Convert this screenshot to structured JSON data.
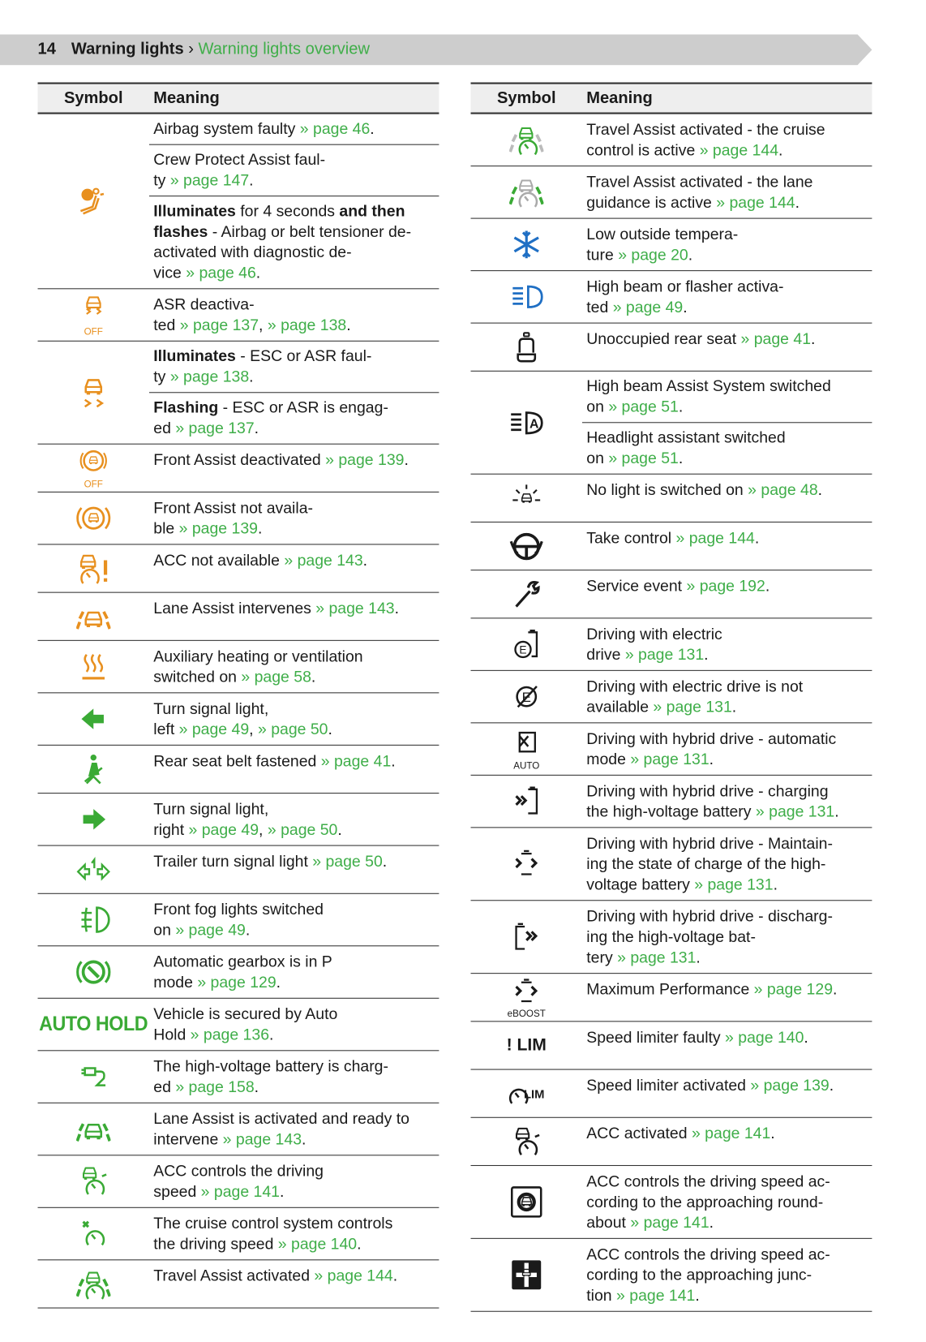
{
  "header": {
    "page_number": "14",
    "section": "Warning lights",
    "separator": "›",
    "subsection": "Warning lights overview"
  },
  "colors": {
    "orange": "#e8901f",
    "green": "#3aaa35",
    "blue": "#1f6fc4",
    "black": "#1a1a1a",
    "link": "#3fae49",
    "band": "#cdcdcd"
  },
  "left": {
    "col_symbol": "Symbol",
    "col_meaning": "Meaning",
    "rows": [
      {
        "icon": "airbag-icon",
        "color": "orange",
        "cells": [
          [
            [
              "Airbag system faulty ",
              ""
            ],
            [
              "» page 46",
              "l"
            ],
            [
              ".",
              ""
            ]
          ],
          [
            [
              "Crew Protect Assist faul-\nty ",
              ""
            ],
            [
              "» page 147",
              "l"
            ],
            [
              ".",
              ""
            ]
          ],
          [
            [
              "Illuminates",
              "b"
            ],
            [
              " for 4 seconds ",
              ""
            ],
            [
              "and then\nflashes",
              "b"
            ],
            [
              " - Airbag or belt tensioner de-\nactivated with diagnostic de-\nvice ",
              ""
            ],
            [
              "» page 46",
              "l"
            ],
            [
              ".",
              ""
            ]
          ]
        ]
      },
      {
        "icon": "asr-off-icon",
        "color": "orange",
        "icon_text": "OFF",
        "cells": [
          [
            [
              "ASR deactiva-\nted ",
              ""
            ],
            [
              "» page 137",
              "l"
            ],
            [
              ", ",
              ""
            ],
            [
              "» page 138",
              "l"
            ],
            [
              ".",
              ""
            ]
          ]
        ]
      },
      {
        "icon": "esc-icon",
        "color": "orange",
        "cells": [
          [
            [
              "Illuminates",
              "b"
            ],
            [
              " - ESC or ASR faul-\nty ",
              ""
            ],
            [
              "» page 138",
              "l"
            ],
            [
              ".",
              ""
            ]
          ],
          [
            [
              "Flashing",
              "b"
            ],
            [
              " - ESC or ASR is engag-\ned ",
              ""
            ],
            [
              "» page 137",
              "l"
            ],
            [
              ".",
              ""
            ]
          ]
        ]
      },
      {
        "icon": "front-assist-off-icon",
        "color": "orange",
        "icon_text": "OFF",
        "cells": [
          [
            [
              "Front Assist deactivated ",
              ""
            ],
            [
              "» page 139",
              "l"
            ],
            [
              ".",
              ""
            ]
          ]
        ]
      },
      {
        "icon": "front-assist-icon",
        "color": "orange",
        "cells": [
          [
            [
              "Front Assist not availa-\nble ",
              ""
            ],
            [
              "» page 139",
              "l"
            ],
            [
              ".",
              ""
            ]
          ]
        ]
      },
      {
        "icon": "acc-unavailable-icon",
        "color": "orange",
        "cells": [
          [
            [
              "ACC not available ",
              ""
            ],
            [
              "» page 143",
              "l"
            ],
            [
              ".",
              ""
            ]
          ]
        ]
      },
      {
        "icon": "lane-assist-icon",
        "color": "orange",
        "cells": [
          [
            [
              "Lane Assist intervenes ",
              ""
            ],
            [
              "» page 143",
              "l"
            ],
            [
              ".",
              ""
            ]
          ]
        ]
      },
      {
        "icon": "auxiliary-heating-icon",
        "color": "orange",
        "cells": [
          [
            [
              "Auxiliary heating or ventilation\nswitched on ",
              ""
            ],
            [
              "» page 58",
              "l"
            ],
            [
              ".",
              ""
            ]
          ]
        ]
      },
      {
        "icon": "turn-left-icon",
        "color": "green",
        "cells": [
          [
            [
              "Turn signal light,\nleft ",
              ""
            ],
            [
              "» page 49",
              "l"
            ],
            [
              ", ",
              ""
            ],
            [
              "» page 50",
              "l"
            ],
            [
              ".",
              ""
            ]
          ]
        ]
      },
      {
        "icon": "rear-seat-belt-icon",
        "color": "green",
        "cells": [
          [
            [
              "Rear seat belt fastened ",
              ""
            ],
            [
              "» page 41",
              "l"
            ],
            [
              ".",
              ""
            ]
          ]
        ]
      },
      {
        "icon": "turn-right-icon",
        "color": "green",
        "cells": [
          [
            [
              "Turn signal light,\nright ",
              ""
            ],
            [
              "» page 49",
              "l"
            ],
            [
              ", ",
              ""
            ],
            [
              "» page 50",
              "l"
            ],
            [
              ".",
              ""
            ]
          ]
        ]
      },
      {
        "icon": "trailer-turn-signal-icon",
        "color": "green",
        "cells": [
          [
            [
              "Trailer turn signal light ",
              ""
            ],
            [
              "» page 50",
              "l"
            ],
            [
              ".",
              ""
            ]
          ]
        ]
      },
      {
        "icon": "front-fog-light-icon",
        "color": "green",
        "cells": [
          [
            [
              "Front fog lights switched\non ",
              ""
            ],
            [
              "» page 49",
              "l"
            ],
            [
              ".",
              ""
            ]
          ]
        ]
      },
      {
        "icon": "gearbox-p-icon",
        "color": "green",
        "cells": [
          [
            [
              "Automatic gearbox is in P\nmode ",
              ""
            ],
            [
              "» page 129",
              "l"
            ],
            [
              ".",
              ""
            ]
          ]
        ]
      },
      {
        "icon": "auto-hold-icon",
        "color": "green",
        "icon_text": "AUTO HOLD",
        "cells": [
          [
            [
              "Vehicle is secured by Auto\nHold ",
              ""
            ],
            [
              "» page 136",
              "l"
            ],
            [
              ".",
              ""
            ]
          ]
        ]
      },
      {
        "icon": "battery-charging-icon",
        "color": "green",
        "cells": [
          [
            [
              "The high-voltage battery is charg-\ned ",
              ""
            ],
            [
              "» page 158",
              "l"
            ],
            [
              ".",
              ""
            ]
          ]
        ]
      },
      {
        "icon": "lane-assist-icon",
        "color": "green",
        "cells": [
          [
            [
              "Lane Assist is activated and ready to\nintervene ",
              ""
            ],
            [
              "» page 143",
              "l"
            ],
            [
              ".",
              ""
            ]
          ]
        ]
      },
      {
        "icon": "acc-icon",
        "color": "green",
        "cells": [
          [
            [
              "ACC controls the driving\nspeed ",
              ""
            ],
            [
              "» page 141",
              "l"
            ],
            [
              ".",
              ""
            ]
          ]
        ]
      },
      {
        "icon": "cruise-control-icon",
        "color": "green",
        "cells": [
          [
            [
              "The cruise control system controls\nthe driving speed ",
              ""
            ],
            [
              "» page 140",
              "l"
            ],
            [
              ".",
              ""
            ]
          ]
        ]
      },
      {
        "icon": "travel-assist-icon",
        "color": "green",
        "cells": [
          [
            [
              "Travel Assist activated ",
              ""
            ],
            [
              "» page 144",
              "l"
            ],
            [
              ".",
              ""
            ]
          ]
        ]
      }
    ]
  },
  "right": {
    "col_symbol": "Symbol",
    "col_meaning": "Meaning",
    "rows": [
      {
        "icon": "travel-assist-cruise-icon",
        "color": "green",
        "cells": [
          [
            [
              "Travel Assist activated - the cruise\ncontrol is active ",
              ""
            ],
            [
              "» page 144",
              "l"
            ],
            [
              ".",
              ""
            ]
          ]
        ]
      },
      {
        "icon": "travel-assist-lane-icon",
        "color": "green",
        "cells": [
          [
            [
              "Travel Assist activated - the lane\nguidance is active ",
              ""
            ],
            [
              "» page 144",
              "l"
            ],
            [
              ".",
              ""
            ]
          ]
        ]
      },
      {
        "icon": "snowflake-icon",
        "color": "blue",
        "cells": [
          [
            [
              "Low outside tempera-\nture ",
              ""
            ],
            [
              "» page 20",
              "l"
            ],
            [
              ".",
              ""
            ]
          ]
        ]
      },
      {
        "icon": "high-beam-icon",
        "color": "blue",
        "cells": [
          [
            [
              "High beam or flasher activa-\nted ",
              ""
            ],
            [
              "» page 49",
              "l"
            ],
            [
              ".",
              ""
            ]
          ]
        ]
      },
      {
        "icon": "rear-seat-icon",
        "color": "black",
        "cells": [
          [
            [
              "Unoccupied rear seat ",
              ""
            ],
            [
              "» page 41",
              "l"
            ],
            [
              ".",
              ""
            ]
          ]
        ]
      },
      {
        "icon": "high-beam-assist-icon",
        "color": "black",
        "cells": [
          [
            [
              "High beam Assist System switched\non ",
              ""
            ],
            [
              "» page 51",
              "l"
            ],
            [
              ".",
              ""
            ]
          ],
          [
            [
              "Headlight assistant switched\non ",
              ""
            ],
            [
              "» page 51",
              "l"
            ],
            [
              ".",
              ""
            ]
          ]
        ]
      },
      {
        "icon": "no-light-icon",
        "color": "black",
        "cells": [
          [
            [
              "No light is switched on ",
              ""
            ],
            [
              "» page 48",
              "l"
            ],
            [
              ".",
              ""
            ]
          ]
        ]
      },
      {
        "icon": "take-control-icon",
        "color": "black",
        "cells": [
          [
            [
              "Take control ",
              ""
            ],
            [
              "» page 144",
              "l"
            ],
            [
              ".",
              ""
            ]
          ]
        ]
      },
      {
        "icon": "wrench-icon",
        "color": "black",
        "cells": [
          [
            [
              "Service event ",
              ""
            ],
            [
              "» page 192",
              "l"
            ],
            [
              ".",
              ""
            ]
          ]
        ]
      },
      {
        "icon": "electric-drive-icon",
        "color": "black",
        "cells": [
          [
            [
              "Driving with electric\ndrive ",
              ""
            ],
            [
              "» page 131",
              "l"
            ],
            [
              ".",
              ""
            ]
          ]
        ]
      },
      {
        "icon": "electric-drive-unavailable-icon",
        "color": "black",
        "cells": [
          [
            [
              "Driving with electric drive is not\navailable ",
              ""
            ],
            [
              "» page 131",
              "l"
            ],
            [
              ".",
              ""
            ]
          ]
        ]
      },
      {
        "icon": "hybrid-auto-icon",
        "color": "black",
        "icon_text": "AUTO",
        "cells": [
          [
            [
              "Driving with hybrid drive - automatic\nmode ",
              ""
            ],
            [
              "» page 131",
              "l"
            ],
            [
              ".",
              ""
            ]
          ]
        ]
      },
      {
        "icon": "hybrid-charging-icon",
        "color": "black",
        "cells": [
          [
            [
              "Driving with hybrid drive - charging\nthe high-voltage battery ",
              ""
            ],
            [
              "» page 131",
              "l"
            ],
            [
              ".",
              ""
            ]
          ]
        ]
      },
      {
        "icon": "hybrid-maintain-icon",
        "color": "black",
        "cells": [
          [
            [
              "Driving with hybrid drive - Maintain-\ning the state of charge of the high-\nvoltage battery ",
              ""
            ],
            [
              "» page 131",
              "l"
            ],
            [
              ".",
              ""
            ]
          ]
        ]
      },
      {
        "icon": "hybrid-discharging-icon",
        "color": "black",
        "cells": [
          [
            [
              "Driving with hybrid drive - discharg-\ning the high-voltage bat-\ntery ",
              ""
            ],
            [
              "» page 131",
              "l"
            ],
            [
              ".",
              ""
            ]
          ]
        ]
      },
      {
        "icon": "eboost-icon",
        "color": "black",
        "icon_text": "eBOOST",
        "cells": [
          [
            [
              "Maximum Performance ",
              ""
            ],
            [
              "» page 129",
              "l"
            ],
            [
              ".",
              ""
            ]
          ]
        ]
      },
      {
        "icon": "speed-limiter-faulty-icon",
        "color": "black",
        "icon_text": "! LIM",
        "cells": [
          [
            [
              "Speed limiter faulty ",
              ""
            ],
            [
              "» page 140",
              "l"
            ],
            [
              ".",
              ""
            ]
          ]
        ]
      },
      {
        "icon": "speed-limiter-icon",
        "color": "black",
        "icon_text": "LIM",
        "cells": [
          [
            [
              "Speed limiter activated ",
              ""
            ],
            [
              "» page 139",
              "l"
            ],
            [
              ".",
              ""
            ]
          ]
        ]
      },
      {
        "icon": "acc-icon",
        "color": "black",
        "cells": [
          [
            [
              "ACC activated ",
              ""
            ],
            [
              "» page 141",
              "l"
            ],
            [
              ".",
              ""
            ]
          ]
        ]
      },
      {
        "icon": "acc-roundabout-icon",
        "color": "black",
        "cells": [
          [
            [
              "ACC controls the driving speed ac-\ncording to the approaching round-\nabout ",
              ""
            ],
            [
              "» page 141",
              "l"
            ],
            [
              ".",
              ""
            ]
          ]
        ]
      },
      {
        "icon": "acc-junction-icon",
        "color": "black",
        "cells": [
          [
            [
              "ACC controls the driving speed ac-\ncording to the approaching junc-\ntion ",
              ""
            ],
            [
              "» page 141",
              "l"
            ],
            [
              ".",
              ""
            ]
          ]
        ]
      }
    ]
  }
}
